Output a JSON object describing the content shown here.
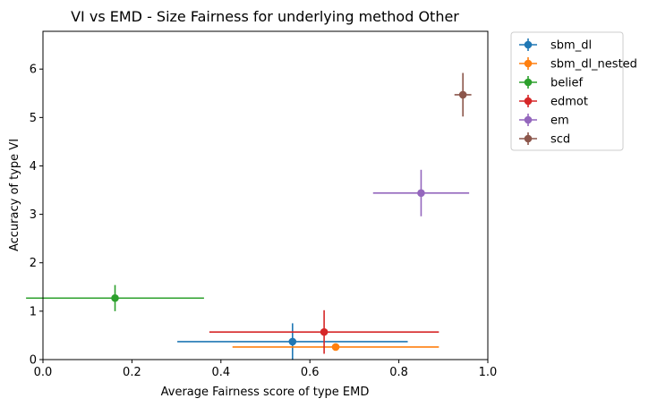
{
  "chart_data": {
    "type": "scatter",
    "title": "VI vs EMD - Size Fairness for underlying method Other",
    "xlabel": "Average Fairness score of type EMD",
    "ylabel": "Accuracy of type VI",
    "xlim": [
      0.0,
      1.0
    ],
    "ylim": [
      0.0,
      6.78
    ],
    "xticks": [
      0.0,
      0.2,
      0.4,
      0.6,
      0.8,
      1.0
    ],
    "xtick_labels": [
      "0.0",
      "0.2",
      "0.4",
      "0.6",
      "0.8",
      "1.0"
    ],
    "yticks": [
      0,
      1,
      2,
      3,
      4,
      5,
      6
    ],
    "ytick_labels": [
      "0",
      "1",
      "2",
      "3",
      "4",
      "5",
      "6"
    ],
    "grid": false,
    "legend_position": "outside-right",
    "series": [
      {
        "name": "sbm_dl",
        "color": "#1f77b4",
        "x": 0.561,
        "y": 0.37,
        "xerr": 0.259,
        "yerr": 0.38
      },
      {
        "name": "sbm_dl_nested",
        "color": "#ff7f0e",
        "x": 0.658,
        "y": 0.26,
        "xerr": 0.232,
        "yerr": 0.07
      },
      {
        "name": "belief",
        "color": "#2ca02c",
        "x": 0.162,
        "y": 1.27,
        "xerr": 0.2,
        "yerr": 0.27
      },
      {
        "name": "edmot",
        "color": "#d62728",
        "x": 0.632,
        "y": 0.57,
        "xerr": 0.258,
        "yerr": 0.45
      },
      {
        "name": "em",
        "color": "#9467bd",
        "x": 0.85,
        "y": 3.44,
        "xerr": 0.108,
        "yerr": 0.48
      },
      {
        "name": "scd",
        "color": "#8c564b",
        "x": 0.944,
        "y": 5.47,
        "xerr": 0.019,
        "yerr": 0.45
      }
    ]
  }
}
